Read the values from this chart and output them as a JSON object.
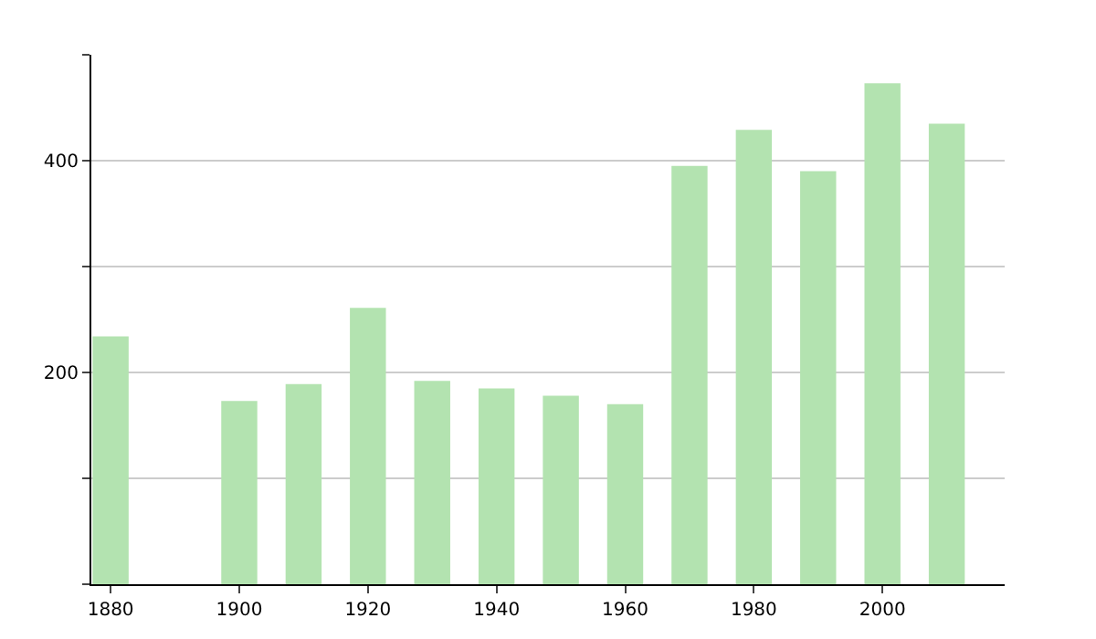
{
  "chart_data": {
    "type": "bar",
    "x": [
      1880,
      1900,
      1910,
      1920,
      1930,
      1940,
      1950,
      1960,
      1970,
      1980,
      1990,
      2000,
      2010
    ],
    "values": [
      234,
      173,
      189,
      261,
      192,
      185,
      178,
      170,
      395,
      429,
      390,
      473,
      435
    ],
    "color": "#b3e3b0",
    "xlim": [
      1877,
      2019
    ],
    "xticks": [
      1880,
      1900,
      1920,
      1940,
      1960,
      1980,
      2000
    ],
    "ylim": [
      0,
      500
    ],
    "yticks": [
      {
        "value": 0,
        "label": null
      },
      {
        "value": 100,
        "label": null
      },
      200,
      {
        "value": 300,
        "label": null
      },
      400,
      {
        "value": 500,
        "label": null
      }
    ],
    "grid": "y"
  }
}
